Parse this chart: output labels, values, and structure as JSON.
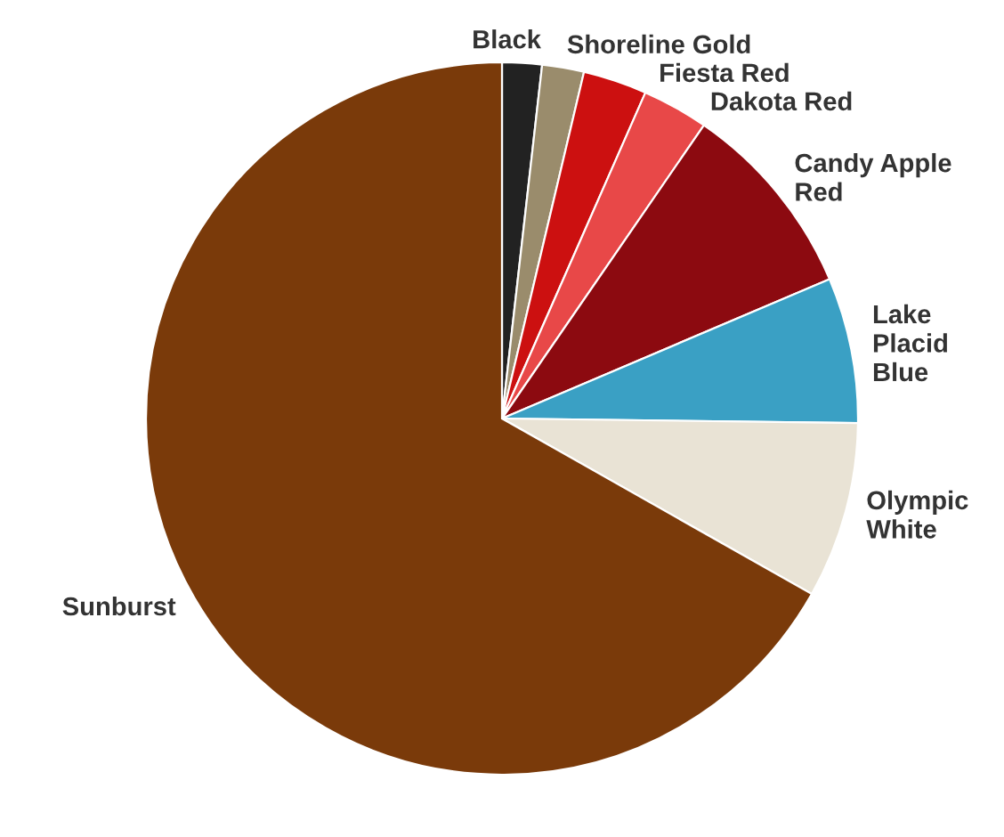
{
  "chart_data": {
    "type": "pie",
    "categories": [
      "Black",
      "Shoreline Gold",
      "Fiesta Red",
      "Dakota Red",
      "Candy Apple\nRed",
      "Lake\nPlacid\nBlue",
      "Olympic\nWhite",
      "Sunburst"
    ],
    "values": [
      1.8,
      1.9,
      2.9,
      3.0,
      9.0,
      6.6,
      8.0,
      66.8
    ],
    "colors": [
      "#222222",
      "#9a8c6c",
      "#cc1010",
      "#e84848",
      "#8c0a10",
      "#3aa0c4",
      "#e9e3d5",
      "#7a3a0a"
    ],
    "legend": false
  }
}
